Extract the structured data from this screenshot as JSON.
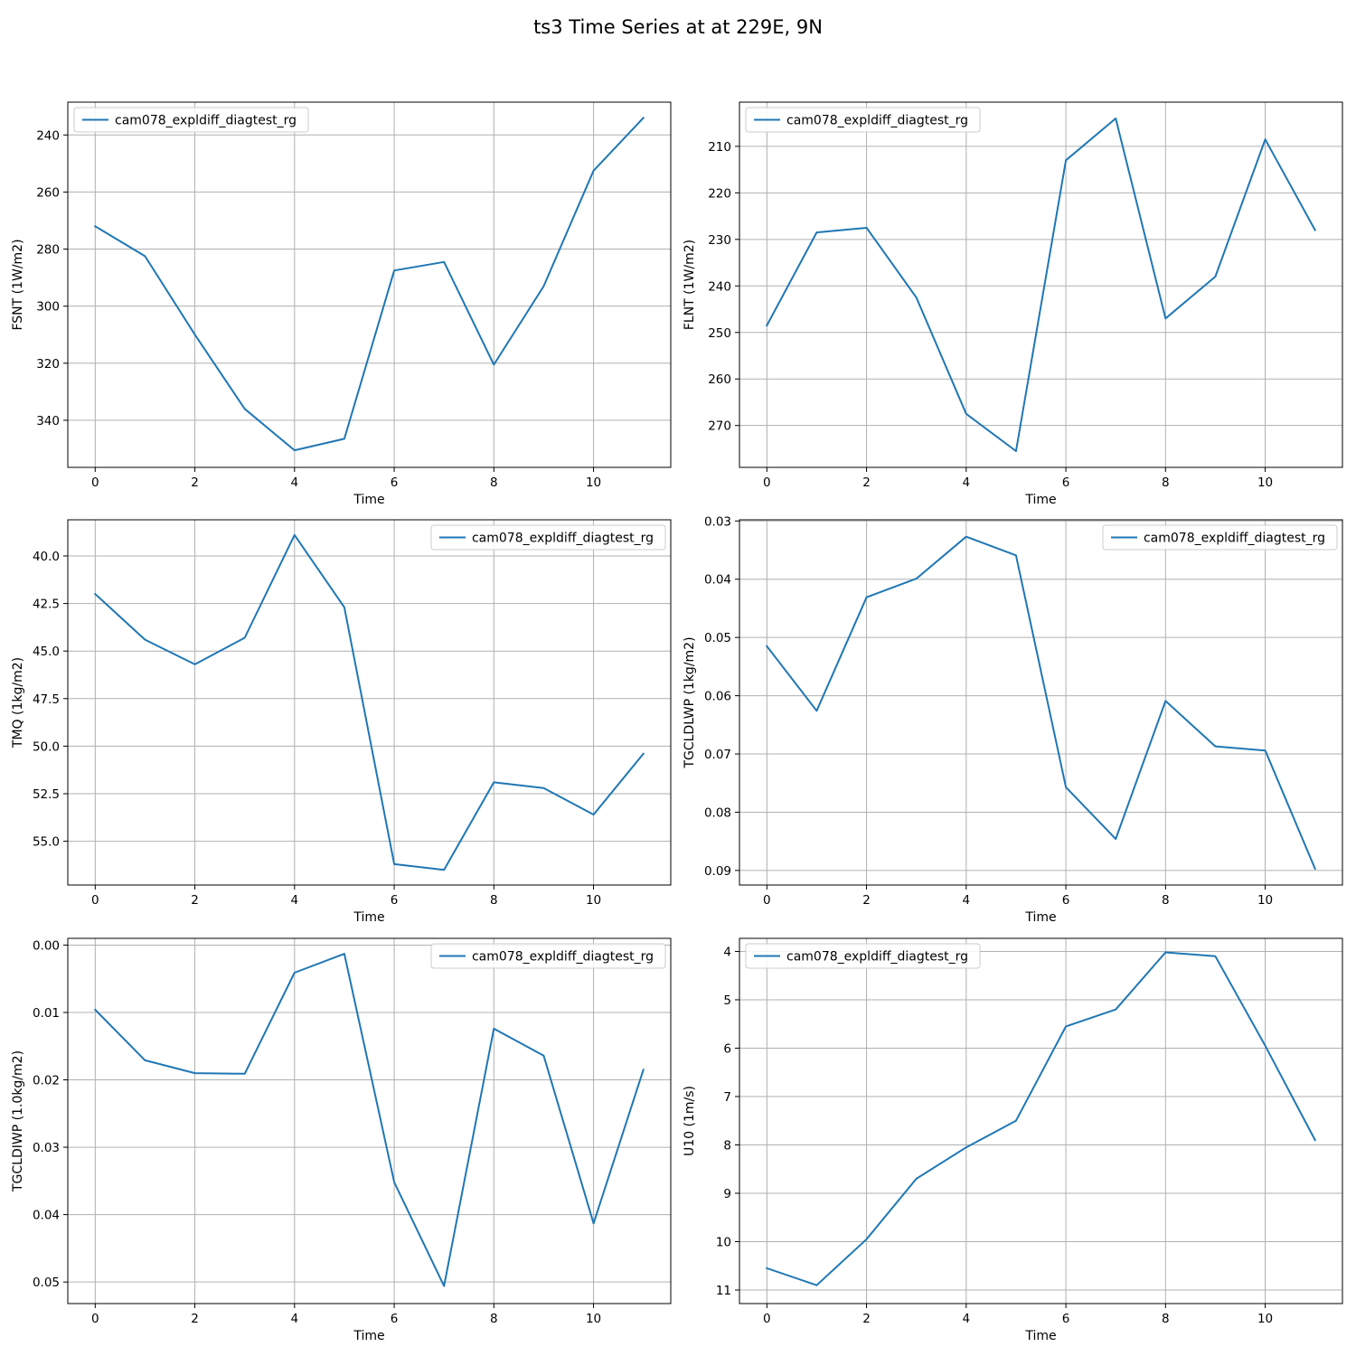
{
  "figure": {
    "title": "ts3 Time Series at at 229E, 9N",
    "series_color": "#1f77b4"
  },
  "chart_data": [
    {
      "type": "line",
      "xlabel": "Time",
      "ylabel": "FSNT (1W/m2)",
      "x": [
        0,
        1,
        2,
        3,
        4,
        5,
        6,
        7,
        8,
        9,
        10,
        11
      ],
      "series": [
        {
          "name": "cam078_expldiff_diagtest_rg",
          "values": [
            272,
            282.5,
            310,
            336,
            350.5,
            346.5,
            287.5,
            284.5,
            320.5,
            293,
            252.5,
            234
          ]
        }
      ],
      "xlim": [
        -0.55,
        11.55
      ],
      "ylim": [
        356.5,
        228.5
      ],
      "y_inverted": true,
      "xticks": [
        0,
        2,
        4,
        6,
        8,
        10
      ],
      "yticks": [
        240,
        260,
        280,
        300,
        320,
        340
      ],
      "ytick_labels": [
        "240",
        "260",
        "280",
        "300",
        "320",
        "340"
      ],
      "legend": "upper left",
      "grid": true
    },
    {
      "type": "line",
      "xlabel": "Time",
      "ylabel": "FLNT (1W/m2)",
      "x": [
        0,
        1,
        2,
        3,
        4,
        5,
        6,
        7,
        8,
        9,
        10,
        11
      ],
      "series": [
        {
          "name": "cam078_expldiff_diagtest_rg",
          "values": [
            248.5,
            228.5,
            227.5,
            242.5,
            267.5,
            275.5,
            213,
            204,
            247,
            238,
            208.5,
            228
          ]
        }
      ],
      "xlim": [
        -0.55,
        11.55
      ],
      "ylim": [
        279.0,
        200.5
      ],
      "y_inverted": true,
      "xticks": [
        0,
        2,
        4,
        6,
        8,
        10
      ],
      "yticks": [
        210,
        220,
        230,
        240,
        250,
        260,
        270
      ],
      "ytick_labels": [
        "210",
        "220",
        "230",
        "240",
        "250",
        "260",
        "270"
      ],
      "legend": "upper left",
      "grid": true
    },
    {
      "type": "line",
      "xlabel": "Time",
      "ylabel": "TMQ (1kg/m2)",
      "x": [
        0,
        1,
        2,
        3,
        4,
        5,
        6,
        7,
        8,
        9,
        10,
        11
      ],
      "series": [
        {
          "name": "cam078_expldiff_diagtest_rg",
          "values": [
            42.0,
            44.4,
            45.7,
            44.3,
            38.9,
            42.7,
            56.2,
            56.5,
            51.9,
            52.2,
            53.6,
            50.4
          ]
        }
      ],
      "xlim": [
        -0.55,
        11.55
      ],
      "ylim": [
        57.3,
        38.1
      ],
      "y_inverted": true,
      "xticks": [
        0,
        2,
        4,
        6,
        8,
        10
      ],
      "yticks": [
        40.0,
        42.5,
        45.0,
        47.5,
        50.0,
        52.5,
        55.0
      ],
      "ytick_labels": [
        "40.0",
        "42.5",
        "45.0",
        "47.5",
        "50.0",
        "52.5",
        "55.0"
      ],
      "legend": "upper right",
      "grid": true
    },
    {
      "type": "line",
      "xlabel": "Time",
      "ylabel": "TGCLDLWP (1kg/m2)",
      "x": [
        0,
        1,
        2,
        3,
        4,
        5,
        6,
        7,
        8,
        9,
        10,
        11
      ],
      "series": [
        {
          "name": "cam078_expldiff_diagtest_rg",
          "values": [
            0.0515,
            0.0626,
            0.0431,
            0.0399,
            0.0327,
            0.0359,
            0.0757,
            0.0846,
            0.0609,
            0.0687,
            0.0694,
            0.0897
          ]
        }
      ],
      "xlim": [
        -0.55,
        11.55
      ],
      "ylim": [
        0.0925,
        0.0298
      ],
      "y_inverted": true,
      "xticks": [
        0,
        2,
        4,
        6,
        8,
        10
      ],
      "yticks": [
        0.03,
        0.04,
        0.05,
        0.06,
        0.07,
        0.08,
        0.09
      ],
      "ytick_labels": [
        "0.03",
        "0.04",
        "0.05",
        "0.06",
        "0.07",
        "0.08",
        "0.09"
      ],
      "legend": "upper right",
      "grid": true
    },
    {
      "type": "line",
      "xlabel": "Time",
      "ylabel": "TGCLDIWP (1.0kg/m2)",
      "x": [
        0,
        1,
        2,
        3,
        4,
        5,
        6,
        7,
        8,
        9,
        10,
        11
      ],
      "series": [
        {
          "name": "cam078_expldiff_diagtest_rg",
          "values": [
            0.0096,
            0.0171,
            0.019,
            0.0191,
            0.0041,
            0.0013,
            0.0352,
            0.0506,
            0.0124,
            0.0164,
            0.0413,
            0.0185
          ]
        }
      ],
      "xlim": [
        -0.55,
        11.55
      ],
      "ylim": [
        0.0532,
        -0.001
      ],
      "y_inverted": true,
      "xticks": [
        0,
        2,
        4,
        6,
        8,
        10
      ],
      "yticks": [
        0.0,
        0.01,
        0.02,
        0.03,
        0.04,
        0.05
      ],
      "ytick_labels": [
        "0.00",
        "0.01",
        "0.02",
        "0.03",
        "0.04",
        "0.05"
      ],
      "legend": "upper right",
      "grid": true
    },
    {
      "type": "line",
      "xlabel": "Time",
      "ylabel": "U10 (1m/s)",
      "x": [
        0,
        1,
        2,
        3,
        4,
        5,
        6,
        7,
        8,
        9,
        10,
        11
      ],
      "series": [
        {
          "name": "cam078_expldiff_diagtest_rg",
          "values": [
            10.55,
            10.9,
            9.95,
            8.7,
            8.05,
            7.5,
            5.55,
            5.2,
            4.02,
            4.1,
            5.95,
            7.9
          ]
        }
      ],
      "xlim": [
        -0.55,
        11.55
      ],
      "ylim": [
        11.28,
        3.73
      ],
      "y_inverted": true,
      "xticks": [
        0,
        2,
        4,
        6,
        8,
        10
      ],
      "yticks": [
        4,
        5,
        6,
        7,
        8,
        9,
        10,
        11
      ],
      "ytick_labels": [
        "4",
        "5",
        "6",
        "7",
        "8",
        "9",
        "10",
        "11"
      ],
      "legend": "upper left",
      "grid": true
    }
  ]
}
